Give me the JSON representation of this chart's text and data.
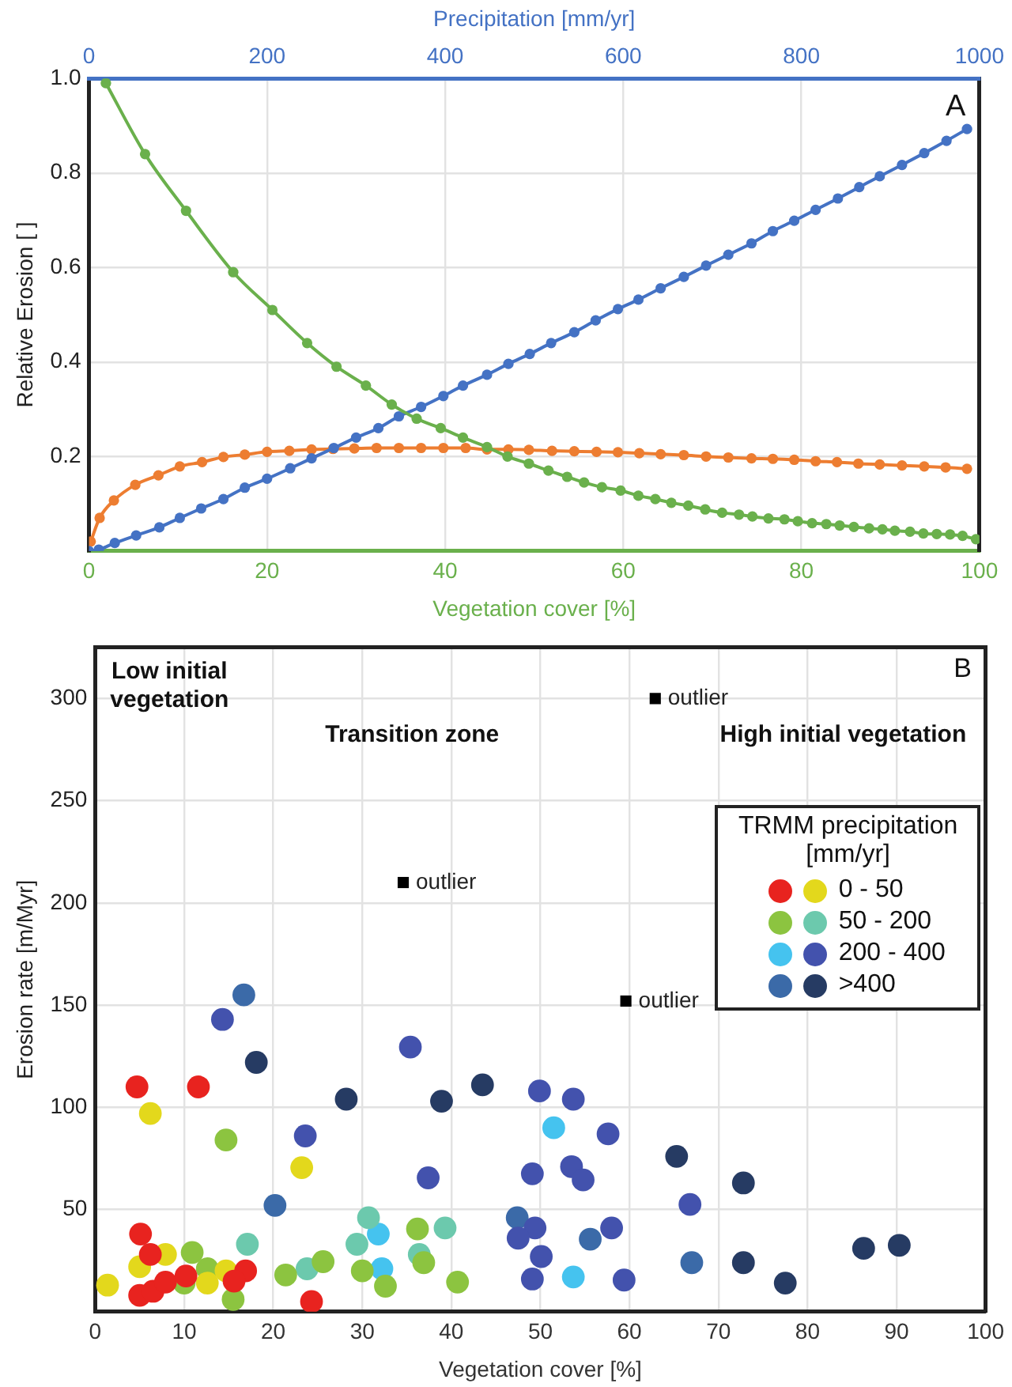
{
  "chart_data": [
    {
      "type": "line",
      "xlabel": "Vegetation cover [%]",
      "x2label": "Precipitation [mm/yr]",
      "ylabel": "Relative Erosion [ ]",
      "xlim": [
        0,
        100
      ],
      "xticks": [
        0,
        20,
        40,
        60,
        80,
        100
      ],
      "x2lim": [
        0,
        1000
      ],
      "x2ticks": [
        0,
        200,
        400,
        600,
        800,
        1000
      ],
      "ylim": [
        0,
        1
      ],
      "yticks": [
        0.2,
        0.4,
        0.6,
        0.8,
        {
          "value": 1,
          "label": "1.0"
        }
      ],
      "grid": true,
      "legend": false,
      "marker": "circle",
      "line_style": "solid",
      "annotations": [
        "A"
      ],
      "series": [
        {
          "color": "#6ab04c",
          "x": [
            1.9,
            6.3,
            10.9,
            16.2,
            20.6,
            24.5,
            27.8,
            31.1,
            34,
            36.8,
            39.5,
            42,
            44.7,
            47,
            49.4,
            51.6,
            53.7,
            55.6,
            57.6,
            59.7,
            61.7,
            63.6,
            65.4,
            67.3,
            69.2,
            71.1,
            73,
            74.5,
            76.3,
            78.1,
            79.6,
            81.2,
            82.8,
            84.3,
            85.9,
            87.6,
            89.1,
            90.5,
            92.2,
            93.7,
            95.2,
            96.7,
            98.1,
            99.6
          ],
          "values": [
            0.99,
            0.84,
            0.72,
            0.59,
            0.51,
            0.44,
            0.39,
            0.35,
            0.31,
            0.28,
            0.26,
            0.24,
            0.22,
            0.2,
            0.185,
            0.17,
            0.157,
            0.145,
            0.135,
            0.128,
            0.117,
            0.11,
            0.102,
            0.096,
            0.088,
            0.081,
            0.077,
            0.073,
            0.069,
            0.067,
            0.063,
            0.059,
            0.057,
            0.054,
            0.051,
            0.048,
            0.046,
            0.043,
            0.041,
            0.037,
            0.036,
            0.035,
            0.032,
            0.025
          ]
        },
        {
          "color": "#4472c4",
          "axis": "x2",
          "x": [
            0,
            11,
            29,
            53,
            79,
            102,
            126,
            151,
            175,
            200,
            226,
            250,
            275,
            300,
            325,
            348,
            373,
            398,
            420,
            447,
            471,
            495,
            519,
            545,
            569,
            594,
            617,
            642,
            668,
            693,
            718,
            744,
            768,
            792,
            816,
            841,
            865,
            888,
            913,
            938,
            963,
            986
          ],
          "values": [
            0,
            0.003,
            0.017,
            0.033,
            0.05,
            0.07,
            0.09,
            0.11,
            0.134,
            0.153,
            0.175,
            0.196,
            0.218,
            0.24,
            0.26,
            0.285,
            0.305,
            0.328,
            0.35,
            0.373,
            0.396,
            0.417,
            0.44,
            0.463,
            0.488,
            0.512,
            0.532,
            0.556,
            0.58,
            0.604,
            0.627,
            0.651,
            0.677,
            0.699,
            0.722,
            0.746,
            0.77,
            0.793,
            0.817,
            0.842,
            0.868,
            0.893
          ]
        },
        {
          "color": "#ed7d31",
          "x": [
            0.2,
            1.2,
            2.8,
            5.2,
            7.8,
            10.2,
            12.7,
            15.1,
            17.5,
            20,
            22.5,
            25,
            27.4,
            29.8,
            32.3,
            34.8,
            37.3,
            39.8,
            42.3,
            44.7,
            47.1,
            49.4,
            52,
            54.5,
            57,
            59.4,
            61.8,
            64.2,
            66.8,
            69.3,
            71.8,
            74.4,
            76.8,
            79.2,
            81.6,
            84,
            86.4,
            88.8,
            91.3,
            93.8,
            96.2,
            98.6
          ],
          "values": [
            0.02,
            0.07,
            0.107,
            0.14,
            0.16,
            0.179,
            0.188,
            0.199,
            0.204,
            0.21,
            0.212,
            0.215,
            0.216,
            0.217,
            0.218,
            0.218,
            0.218,
            0.218,
            0.218,
            0.215,
            0.215,
            0.214,
            0.212,
            0.211,
            0.21,
            0.209,
            0.207,
            0.205,
            0.203,
            0.2,
            0.198,
            0.196,
            0.195,
            0.193,
            0.19,
            0.188,
            0.185,
            0.183,
            0.181,
            0.179,
            0.177,
            0.174
          ]
        }
      ]
    },
    {
      "type": "scatter",
      "xlabel": "Vegetation cover [%]",
      "ylabel": "Erosion rate [m/Myr]",
      "xlim": [
        0,
        100
      ],
      "xticks": [
        0,
        10,
        20,
        30,
        40,
        50,
        60,
        70,
        80,
        90,
        100
      ],
      "ylim": [
        0,
        325
      ],
      "yticks": [
        50,
        100,
        150,
        200,
        250,
        300
      ],
      "grid": true,
      "legend": "top right",
      "legend_title": "TRMM precipitation [mm/yr]",
      "marker": "circle",
      "annotations": [
        "B",
        "Low initial vegetation",
        "Transition zone",
        "High initial vegetation",
        {
          "text": "outlier",
          "x": 34.6,
          "y": 210
        },
        {
          "text": "outlier",
          "x": 62.9,
          "y": 300
        },
        {
          "text": "outlier",
          "x": 59.6,
          "y": 152
        }
      ],
      "series": [
        {
          "color": "#e8231f",
          "x": [
            4.7,
            11.6,
            5.1,
            6.2,
            5,
            6.5,
            7.9,
            10.2,
            16.9,
            24.3,
            15.6
          ],
          "values": [
            110,
            110,
            38,
            28,
            8,
            10,
            14.5,
            17.5,
            20,
            5,
            15
          ]
        },
        {
          "name": "0 - 50",
          "color": "#e3d81c",
          "x": [
            6.2,
            1.4,
            7.9,
            23.2,
            12.6,
            14.7,
            5
          ],
          "values": [
            97,
            13,
            28,
            70.5,
            14,
            20,
            22
          ]
        },
        {
          "color": "#8cc440",
          "x": [
            14.7,
            10.9,
            12.6,
            10,
            15.5,
            21.4,
            25.6,
            30,
            32.6,
            36.2,
            36.9,
            40.7
          ],
          "values": [
            84,
            29,
            21,
            14,
            6,
            18,
            24.5,
            20,
            12.5,
            40.5,
            24,
            14.5
          ]
        },
        {
          "name": "50 - 200",
          "color": "#6cc9ad",
          "x": [
            17.1,
            23.8,
            29.4,
            30.7,
            36.4,
            39.3
          ],
          "values": [
            33,
            21,
            33,
            46,
            28,
            41
          ]
        },
        {
          "color": "#45c3ef",
          "x": [
            31.8,
            32.2,
            51.5,
            53.7
          ],
          "values": [
            38,
            21,
            90,
            17
          ]
        },
        {
          "name": "200 - 400",
          "color": "#4352ad",
          "x": [
            14.3,
            23.6,
            35.4,
            37.4,
            49.9,
            53.7,
            57.6,
            49.1,
            53.5,
            54.8,
            66.8,
            49.4,
            47.5,
            50.1,
            58,
            49.1,
            59.4
          ],
          "values": [
            143,
            86,
            129.5,
            65.5,
            108,
            104,
            87,
            67.5,
            71,
            64.5,
            52.5,
            41,
            36,
            27,
            41,
            16,
            15.5
          ]
        },
        {
          "color": "#3b6aa8",
          "x": [
            16.7,
            20.2,
            47.4,
            55.6,
            67
          ],
          "values": [
            155,
            52,
            46,
            35.5,
            24
          ]
        },
        {
          "name": ">400",
          "color": "#263b63",
          "x": [
            18.1,
            28.2,
            38.9,
            43.5,
            65.3,
            72.8,
            72.8,
            77.5,
            86.3,
            90.3
          ],
          "values": [
            122,
            104,
            103,
            111,
            76,
            63,
            24,
            14,
            31,
            32.5
          ]
        },
        {
          "color": "#000000",
          "marker": "square",
          "x": [
            34.6,
            62.9,
            59.6
          ],
          "values": [
            210,
            300,
            152
          ]
        }
      ]
    }
  ]
}
